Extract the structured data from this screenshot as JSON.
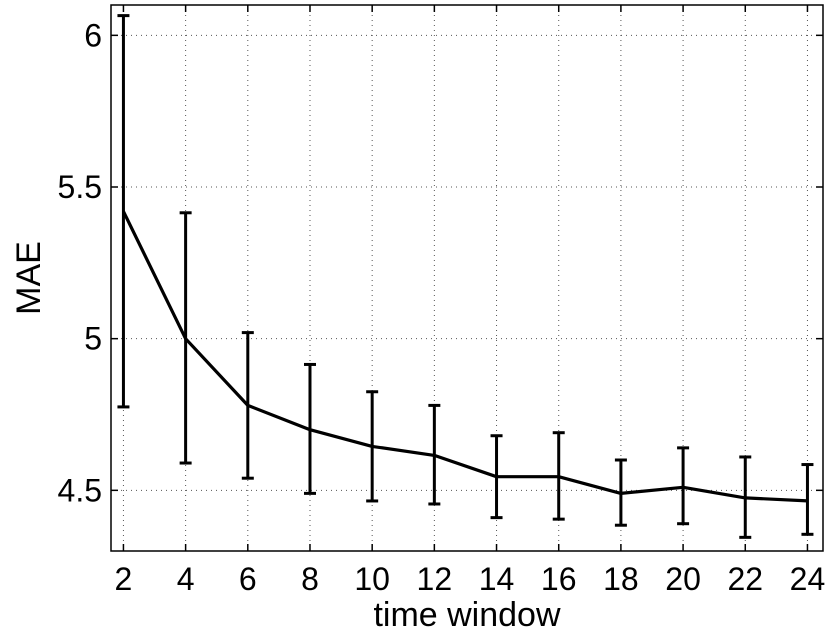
{
  "chart_data": {
    "type": "line",
    "title": "",
    "xlabel": "time window",
    "ylabel": "MAE",
    "xlim": [
      1.6,
      24.5
    ],
    "ylim": [
      4.3,
      6.1
    ],
    "xticks": [
      2,
      4,
      6,
      8,
      10,
      12,
      14,
      16,
      18,
      20,
      22,
      24
    ],
    "xtick_labels": [
      "2",
      "4",
      "6",
      "8",
      "10",
      "12",
      "14",
      "16",
      "18",
      "20",
      "22",
      "24"
    ],
    "yticks": [
      4.5,
      5,
      5.5,
      6
    ],
    "ytick_labels": [
      "4.5",
      "5",
      "5.5",
      "6"
    ],
    "grid": true,
    "series": [
      {
        "x": [
          2,
          4,
          6,
          8,
          10,
          12,
          14,
          16,
          18,
          20,
          22,
          24
        ],
        "y": [
          5.42,
          5.0,
          4.78,
          4.7,
          4.645,
          4.615,
          4.545,
          4.545,
          4.49,
          4.51,
          4.475,
          4.465
        ],
        "err_low": [
          4.775,
          4.59,
          4.54,
          4.49,
          4.465,
          4.455,
          4.41,
          4.405,
          4.385,
          4.39,
          4.345,
          4.355
        ],
        "err_high": [
          6.065,
          5.415,
          5.02,
          4.915,
          4.825,
          4.78,
          4.68,
          4.69,
          4.6,
          4.64,
          4.61,
          4.585
        ],
        "color": "#000000"
      }
    ]
  }
}
